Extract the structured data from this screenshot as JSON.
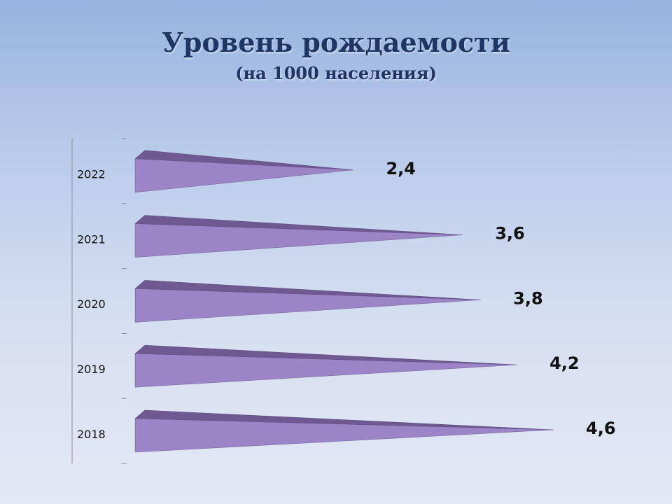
{
  "slide": {
    "title": "Уровень рождаемости",
    "subtitle": "(на 1000 населения)"
  },
  "chart_data": {
    "type": "bar",
    "orientation": "horizontal",
    "categories": [
      "2018",
      "2019",
      "2020",
      "2021",
      "2022"
    ],
    "values": [
      4.6,
      4.2,
      3.8,
      3.6,
      2.4
    ],
    "value_labels": [
      "4,6",
      "4,2",
      "3,8",
      "3,6",
      "2,4"
    ],
    "bar_shape": "3d-cone",
    "xlim": [
      0,
      5
    ],
    "grid": false,
    "legend": "none",
    "colors": {
      "bar_face": "#9b85c6",
      "bar_top": "#6e5a91",
      "bar_edge": "#5f4b82",
      "axis": "#8c8c9c",
      "category_text": "#111111",
      "value_text": "#111111"
    }
  }
}
